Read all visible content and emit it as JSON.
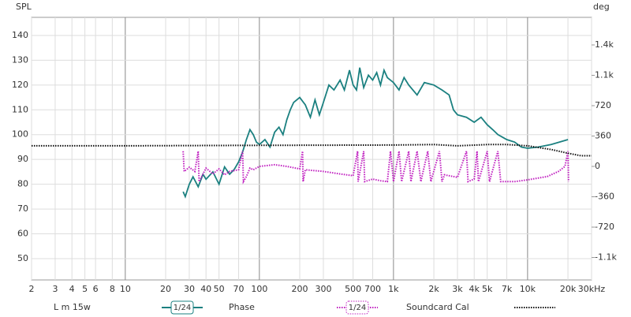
{
  "chart_data": {
    "type": "line",
    "y_label": "SPL",
    "y2_label": "deg",
    "xscale": "log",
    "grid": true,
    "xlim": [
      2,
      30000
    ],
    "xticks": [
      2,
      3,
      4,
      5,
      6,
      8,
      10,
      20,
      30,
      40,
      50,
      70,
      100,
      200,
      300,
      500,
      700,
      {
        "value": 1000,
        "label": "1k"
      },
      {
        "value": 2000,
        "label": "2k"
      },
      {
        "value": 3000,
        "label": "3k"
      },
      {
        "value": 4000,
        "label": "4k"
      },
      {
        "value": 5000,
        "label": "5k"
      },
      {
        "value": 7000,
        "label": "7k"
      },
      {
        "value": 10000,
        "label": "10k"
      },
      {
        "value": 20000,
        "label": "20k"
      },
      {
        "value": 30000,
        "label": "30kHz"
      }
    ],
    "ylim": [
      41.4,
      147.3
    ],
    "yticks": [
      50,
      60,
      70,
      80,
      90,
      100,
      110,
      120,
      130,
      140
    ],
    "y2lim": [
      -1346,
      1767
    ],
    "y2ticks": [
      {
        "value": -1080,
        "label": "-1.1k"
      },
      -720,
      -360,
      0,
      360,
      720,
      {
        "value": 1080,
        "label": "1.1k"
      },
      {
        "value": 1440,
        "label": "1.4k"
      }
    ],
    "series": [
      {
        "name": "L m 15w",
        "color": "#1b8080",
        "smoothing": "1/24",
        "style": "solid",
        "x": [
          27,
          28,
          30,
          32,
          35,
          38,
          40,
          45,
          50,
          55,
          60,
          65,
          70,
          75,
          80,
          85,
          90,
          95,
          100,
          110,
          120,
          130,
          140,
          150,
          160,
          170,
          180,
          200,
          220,
          240,
          260,
          280,
          300,
          330,
          360,
          400,
          430,
          470,
          500,
          530,
          560,
          600,
          650,
          700,
          750,
          800,
          850,
          900,
          1000,
          1100,
          1200,
          1300,
          1500,
          1700,
          2000,
          2300,
          2600,
          2800,
          3000,
          3500,
          4000,
          4500,
          5000,
          5500,
          6000,
          7000,
          8000,
          9000,
          10000,
          12000,
          15000,
          20000
        ],
        "values": [
          77,
          75,
          80,
          83,
          79,
          84,
          82,
          85,
          80,
          87,
          84,
          86,
          89,
          93,
          98,
          102,
          100,
          97,
          96,
          98,
          95,
          101,
          103,
          100,
          106,
          110,
          113,
          115,
          112,
          107,
          114,
          108,
          113,
          120,
          118,
          122,
          118,
          126,
          120,
          118,
          127,
          119,
          124,
          122,
          125,
          120,
          126,
          123,
          121,
          118,
          123,
          120,
          116,
          121,
          120,
          118,
          116,
          110,
          108,
          107,
          105,
          107,
          104,
          102,
          100,
          98,
          97,
          95,
          94.5,
          95,
          96,
          98
        ]
      },
      {
        "name": "Phase",
        "color": "#c020c0",
        "smoothing": "1/24",
        "style": "dotted",
        "axis": "y2",
        "x": [
          27,
          27.5,
          30,
          33,
          35,
          35.5,
          40,
          45,
          50,
          55,
          60,
          70,
          75,
          76,
          80,
          85,
          90,
          100,
          130,
          160,
          200,
          210,
          212,
          220,
          300,
          400,
          500,
          540,
          545,
          600,
          610,
          700,
          800,
          900,
          950,
          1000,
          1100,
          1150,
          1300,
          1350,
          1500,
          1600,
          1800,
          1900,
          2200,
          2300,
          2400,
          3000,
          3500,
          3600,
          4000,
          4200,
          4300,
          5000,
          5200,
          6000,
          6300,
          7000,
          8000,
          10000,
          14000,
          17000,
          19000,
          20000,
          20200
        ],
        "values": [
          180,
          -60,
          -10,
          -60,
          180,
          -180,
          -20,
          -90,
          -30,
          -100,
          -60,
          -40,
          180,
          -180,
          -120,
          -20,
          -40,
          0,
          20,
          0,
          -30,
          180,
          -180,
          -40,
          -60,
          -90,
          -110,
          180,
          -180,
          180,
          -180,
          -150,
          -170,
          -180,
          180,
          -180,
          180,
          -180,
          180,
          -180,
          180,
          -180,
          180,
          -180,
          180,
          -180,
          -100,
          -130,
          180,
          -180,
          -150,
          180,
          -180,
          180,
          -180,
          180,
          -180,
          -180,
          -180,
          -160,
          -120,
          -60,
          0,
          180,
          -180
        ]
      },
      {
        "name": "Soundcard Cal",
        "color": "#111111",
        "style": "dotted",
        "x": [
          2,
          10,
          100,
          1000,
          2000,
          3000,
          5000,
          7000,
          10000,
          15000,
          20000,
          25000,
          30000
        ],
        "values": [
          95.5,
          95.5,
          95.7,
          95.8,
          96,
          95.5,
          96,
          96,
          95.5,
          94,
          92.5,
          91.5,
          91.5
        ]
      }
    ]
  }
}
